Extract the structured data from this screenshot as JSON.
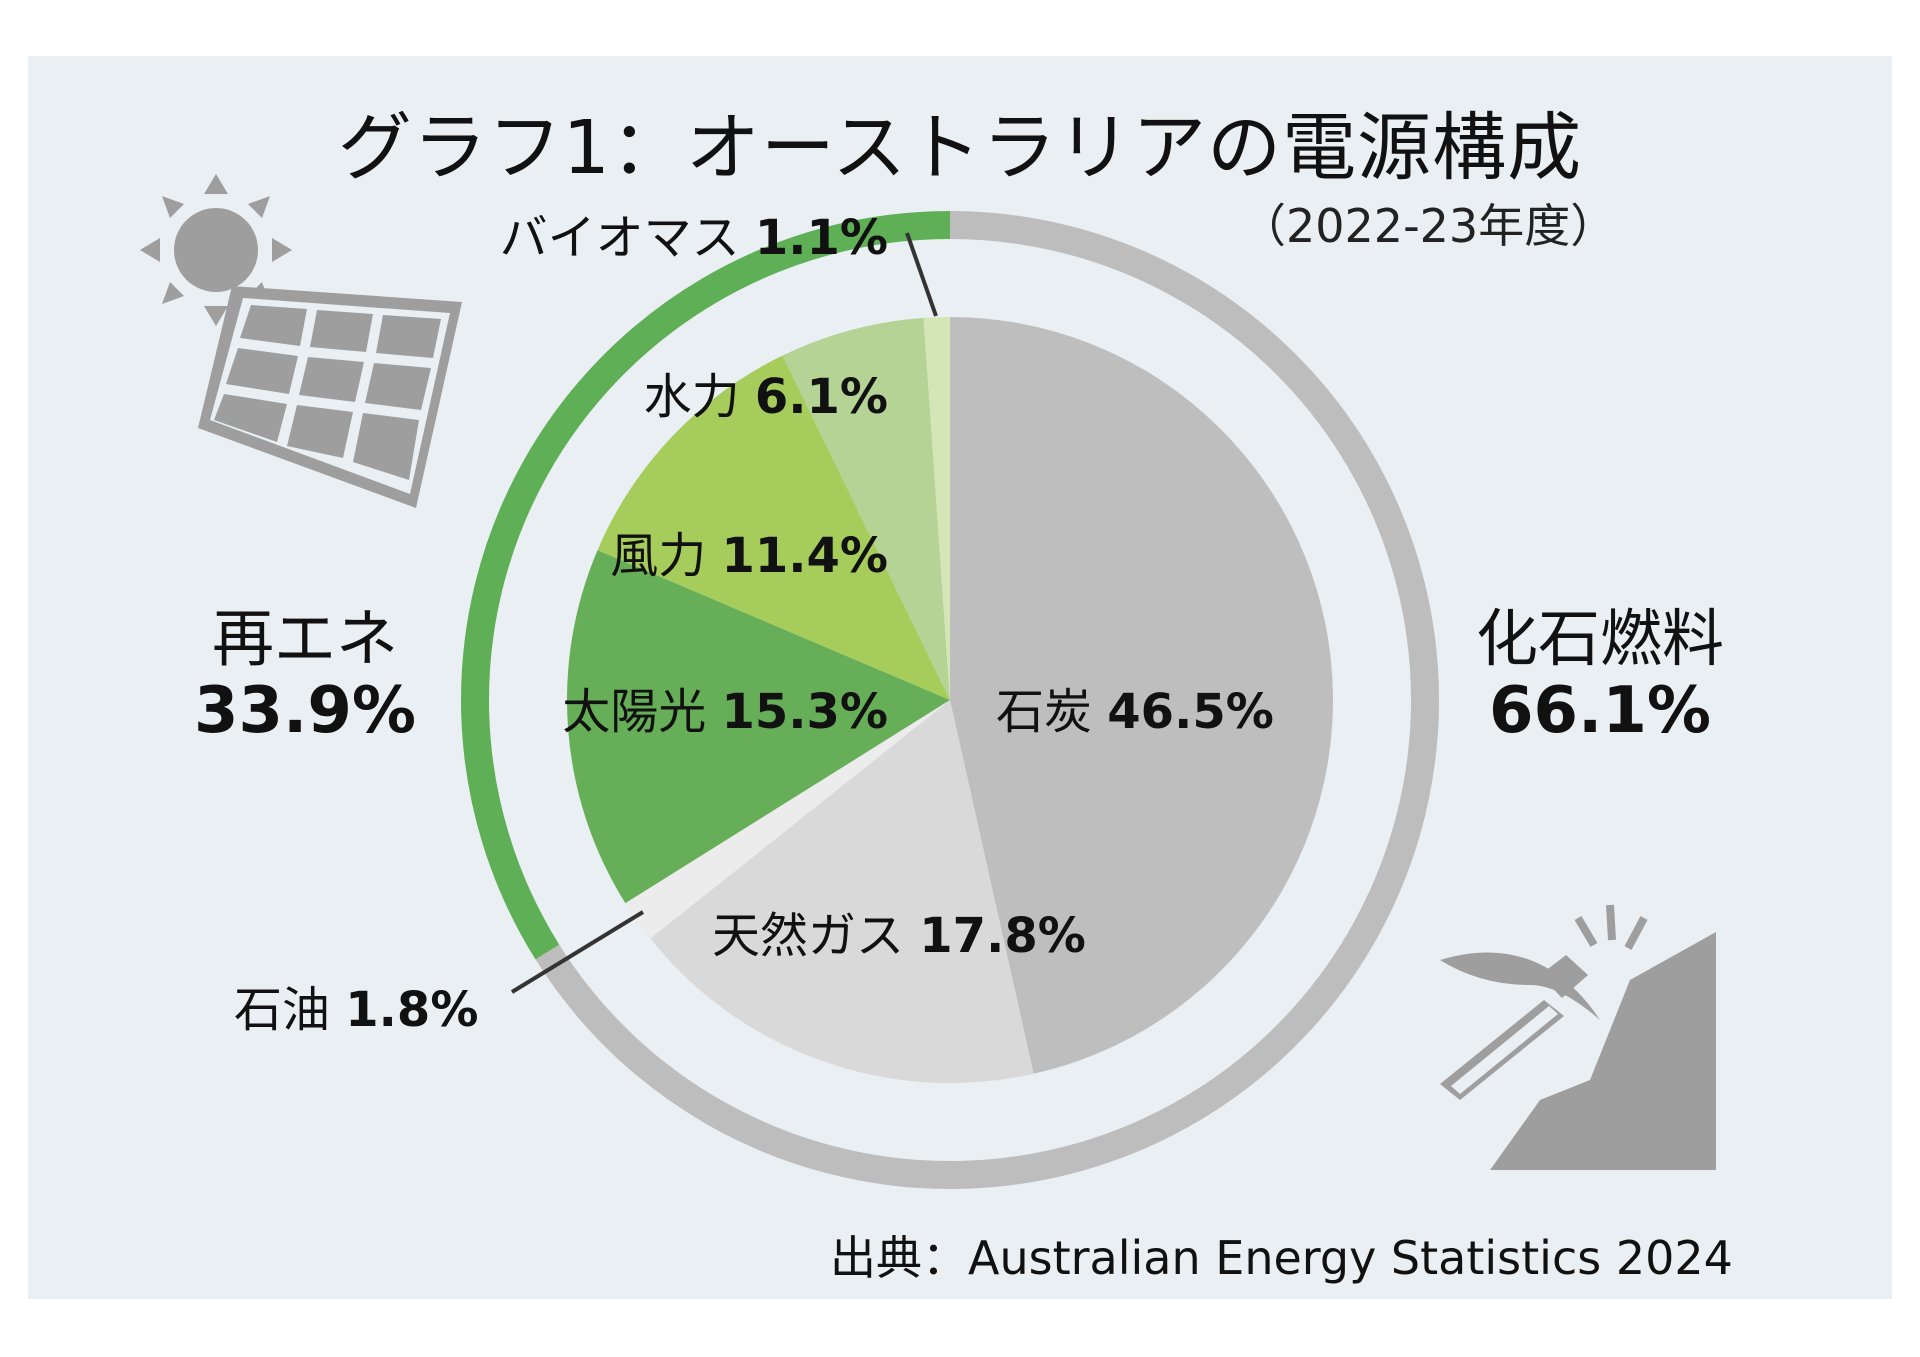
{
  "title": "グラフ1：オーストラリアの電源構成",
  "subtitle": "（2022-23年度）",
  "source": "出典：Australian Energy Statistics 2024",
  "groups": {
    "renewable": {
      "name": "再エネ",
      "value": "33.9%"
    },
    "fossil": {
      "name": "化石燃料",
      "value": "66.1%"
    }
  },
  "labels": {
    "coal": {
      "name": "石炭",
      "value": "46.5%"
    },
    "gas": {
      "name": "天然ガス",
      "value": "17.8%"
    },
    "oil": {
      "name": "石油",
      "value": "1.8%"
    },
    "solar": {
      "name": "太陽光",
      "value": "15.3%"
    },
    "wind": {
      "name": "風力",
      "value": "11.4%"
    },
    "hydro": {
      "name": "水力",
      "value": "6.1%"
    },
    "biomass": {
      "name": "バイオマス",
      "value": "1.1%"
    }
  },
  "icons": [
    "sun-icon",
    "solar-panel-icon",
    "pickaxe-icon",
    "rock-icon"
  ],
  "colors": {
    "background": "#e9eff2",
    "renewable_ring": "#5faf57",
    "fossil_ring": "#bdbdbd",
    "coal": "#bebebe",
    "gas": "#d9d9d9",
    "oil": "#ececec",
    "solar": "#66ae57",
    "wind": "#a6cd5c",
    "hydro": "#b5d395",
    "biomass": "#d4e6b5"
  },
  "chart_data": {
    "type": "pie",
    "title": "グラフ1：オーストラリアの電源構成",
    "subtitle": "（2022-23年度）",
    "slices": [
      {
        "name": "石炭",
        "value": 46.5,
        "group": "化石燃料",
        "color": "#bebebe"
      },
      {
        "name": "天然ガス",
        "value": 17.8,
        "group": "化石燃料",
        "color": "#d9d9d9"
      },
      {
        "name": "石油",
        "value": 1.8,
        "group": "化石燃料",
        "color": "#ececec"
      },
      {
        "name": "太陽光",
        "value": 15.3,
        "group": "再エネ",
        "color": "#66ae57"
      },
      {
        "name": "風力",
        "value": 11.4,
        "group": "再エネ",
        "color": "#a6cd5c"
      },
      {
        "name": "水力",
        "value": 6.1,
        "group": "再エネ",
        "color": "#b5d395"
      },
      {
        "name": "バイオマス",
        "value": 1.1,
        "group": "再エネ",
        "color": "#d4e6b5"
      }
    ],
    "outer_ring": [
      {
        "name": "化石燃料",
        "value": 66.1,
        "color": "#bdbdbd"
      },
      {
        "name": "再エネ",
        "value": 33.9,
        "color": "#5faf57"
      }
    ],
    "direction": "clockwise from top"
  }
}
